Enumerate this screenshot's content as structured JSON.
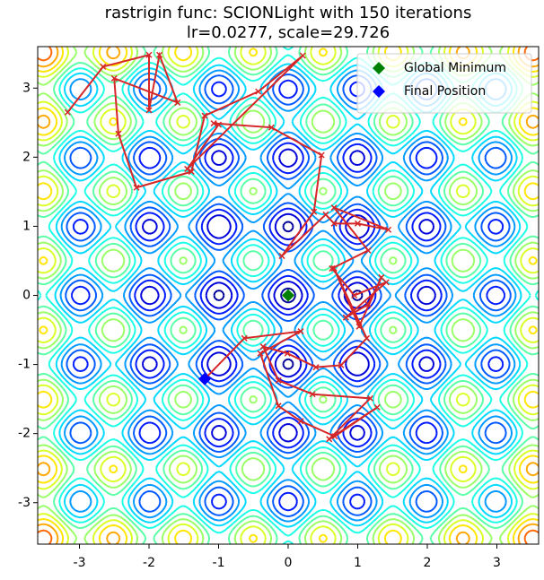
{
  "chart_data": {
    "type": "contour-path",
    "title": "rastrigin func: SCIONLight with 150 iterations",
    "subtitle": "lr=0.0277, scale=29.726",
    "xlim": [
      -3.6,
      3.6
    ],
    "ylim": [
      -3.6,
      3.6
    ],
    "xticks": [
      -3,
      -2,
      -1,
      0,
      1,
      2,
      3
    ],
    "yticks": [
      -3,
      -2,
      -1,
      0,
      1,
      2,
      3
    ],
    "legend": "upper right",
    "trajectory": {
      "color": "#d62728",
      "x": [
        -3.17,
        -2.66,
        -2.0,
        -2.0,
        -1.85,
        -1.59,
        -2.5,
        -2.44,
        -2.18,
        -1.39,
        -1.2,
        -0.43,
        0.21,
        -1.45,
        -1.0,
        -1.07,
        -0.24,
        0.48,
        0.37,
        -0.09,
        0.54,
        0.66,
        1.0,
        1.44,
        0.66,
        1.15,
        0.63,
        0.95,
        1.41,
        0.83,
        1.15,
        1.34,
        1.02,
        0.66,
        1.13,
        0.76,
        0.4,
        -0.01,
        -0.36,
        -0.14,
        0.35,
        1.18,
        0.59,
        1.28,
        0.67,
        0.18,
        -0.14,
        -0.4,
        0.18,
        -0.63,
        -1.2
      ],
      "y": [
        2.65,
        3.31,
        3.48,
        2.68,
        3.48,
        2.79,
        3.14,
        2.34,
        1.56,
        1.79,
        2.6,
        2.95,
        3.47,
        1.83,
        2.47,
        2.49,
        2.43,
        2.03,
        1.21,
        0.57,
        1.17,
        1.04,
        1.04,
        0.95,
        1.27,
        0.65,
        0.39,
        0.0,
        0.19,
        -0.32,
        -0.13,
        0.26,
        -0.45,
        0.39,
        -0.62,
        -1.01,
        -1.04,
        -0.84,
        -0.74,
        -1.23,
        -1.43,
        -1.49,
        -2.08,
        -1.62,
        -2.04,
        -1.82,
        -1.6,
        -0.84,
        -0.52,
        -0.62,
        -1.21
      ]
    },
    "points": [
      {
        "name": "Global Minimum",
        "x": 0,
        "y": 0,
        "color": "green"
      },
      {
        "name": "Final Position",
        "x": -1.2,
        "y": -1.21,
        "color": "blue"
      }
    ]
  }
}
